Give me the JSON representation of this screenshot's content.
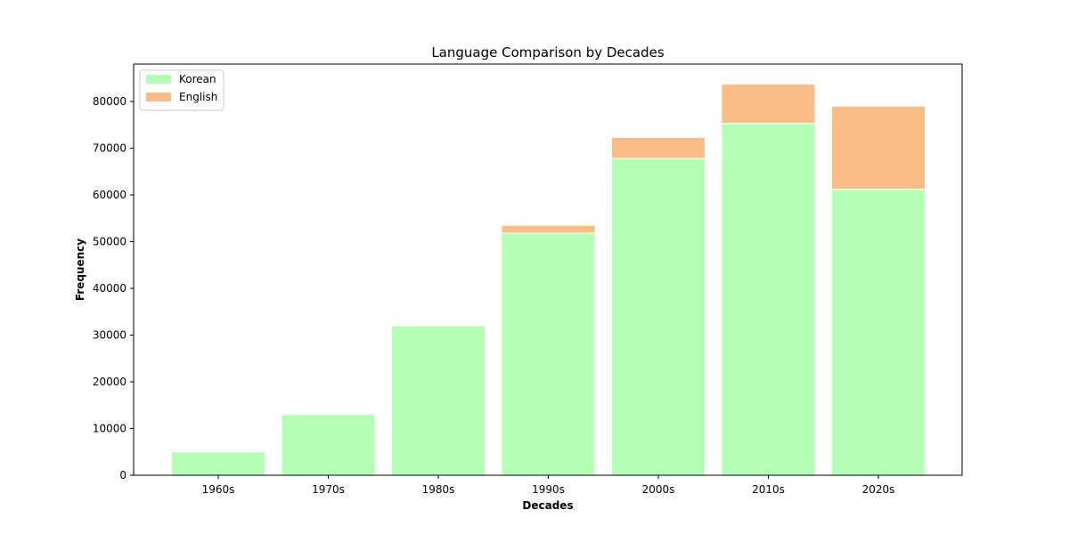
{
  "chart_data": {
    "type": "bar",
    "stacked": true,
    "title": "Language Comparison by Decades",
    "xlabel": "Decades",
    "ylabel": "Frequency",
    "categories": [
      "1960s",
      "1970s",
      "1980s",
      "1990s",
      "2000s",
      "2010s",
      "2020s"
    ],
    "series": [
      {
        "name": "Korean",
        "color": "#b6ffb6",
        "values": [
          5000,
          13000,
          32000,
          51800,
          67800,
          75300,
          61200
        ]
      },
      {
        "name": "English",
        "color": "#f9bd87",
        "values": [
          0,
          0,
          0,
          1700,
          4500,
          8400,
          17800
        ]
      }
    ],
    "ylim": [
      0,
      88000
    ],
    "yticks": [
      0,
      10000,
      20000,
      30000,
      40000,
      50000,
      60000,
      70000,
      80000
    ],
    "ytick_labels": [
      "0",
      "10000",
      "20000",
      "30000",
      "40000",
      "50000",
      "60000",
      "70000",
      "80000"
    ],
    "grid": false,
    "legend_position": "top-left"
  }
}
